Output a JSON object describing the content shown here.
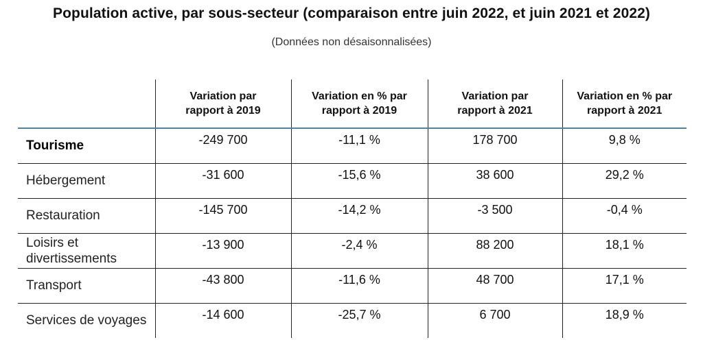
{
  "chart_data": {
    "type": "table",
    "title": "Population active, par sous-secteur (comparaison entre juin  2022, et juin  2021 et 2022)",
    "subtitle": "(Données non désaisonnalisées)",
    "columns": [
      "Variation par rapport à 2019",
      "Variation en % par rapport à 2019",
      "Variation par rapport à 2021",
      "Variation en % par rapport à 2021"
    ],
    "rows": [
      {
        "label": "Tourisme",
        "values": [
          "-249 700",
          "-11,1 %",
          "178 700",
          "9,8 %"
        ]
      },
      {
        "label": "Hébergement",
        "values": [
          "-31 600",
          "-15,6 %",
          "38 600",
          "29,2 %"
        ]
      },
      {
        "label": "Restauration",
        "values": [
          "-145 700",
          "-14,2 %",
          "-3 500",
          "-0,4 %"
        ]
      },
      {
        "label": "Loisirs et divertissements",
        "values": [
          "-13 900",
          "-2,4 %",
          "88 200",
          "18,1 %"
        ]
      },
      {
        "label": "Transport",
        "values": [
          "-43 800",
          "-11,6 %",
          "48 700",
          "17,1 %"
        ]
      },
      {
        "label": "Services de voyages",
        "values": [
          "-14 600",
          "-25,7 %",
          "6 700",
          "18,9 %"
        ]
      }
    ]
  },
  "colors": {
    "header_rule": "#4f81a6",
    "grid": "#222222",
    "text": "#111111"
  }
}
